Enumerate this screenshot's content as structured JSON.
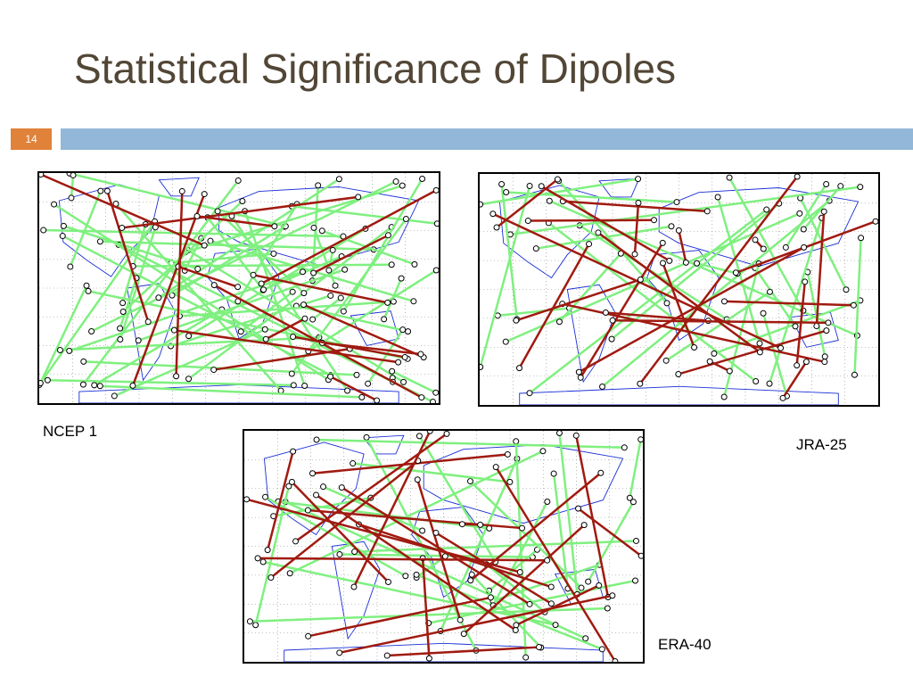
{
  "header": {
    "title": "Statistical Significance of Dipoles",
    "slide_number": "14"
  },
  "maps": [
    {
      "label": "NCEP 1"
    },
    {
      "label": "JRA-25"
    },
    {
      "label": "ERA-40"
    }
  ]
}
